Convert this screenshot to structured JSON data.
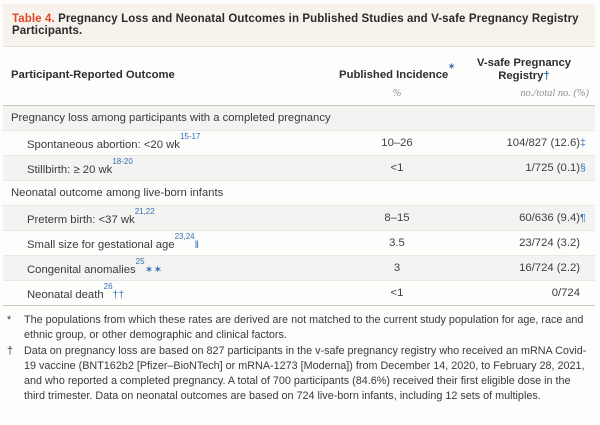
{
  "colors": {
    "accent_red": "#e0492a",
    "reference_blue": "#3570b4",
    "title_bar_bg": "#f7f3ec",
    "shaded_row_bg": "#f3f3f1"
  },
  "title": {
    "label": "Table 4.",
    "text": "Pregnancy Loss and Neonatal Outcomes in Published Studies and V-safe Pregnancy Registry Participants."
  },
  "header": {
    "col1": "Participant-Reported Outcome",
    "col2": "Published Incidence",
    "col2_marker": "✶",
    "col3_line1": "V-safe Pregnancy",
    "col3_line2": "Registry",
    "col3_marker": "†",
    "sub2": "%",
    "sub3": "no./total no. (%)"
  },
  "rows": [
    {
      "type": "category",
      "label": "Pregnancy loss among participants with a completed pregnancy"
    },
    {
      "type": "item",
      "label": "Spontaneous abortion: <20 wk",
      "ref": "15-17",
      "suffix": "",
      "incidence": "10–26",
      "registry": "104/827 (12.6)",
      "symbol": "‡"
    },
    {
      "type": "item",
      "label": "Stillbirth: ≥ 20 wk",
      "ref": "18-20",
      "suffix": "",
      "incidence": "<1",
      "registry": "1/725 (0.1)",
      "symbol": "§"
    },
    {
      "type": "category",
      "label": "Neonatal outcome among live-born infants"
    },
    {
      "type": "item",
      "label": "Preterm birth: <37 wk",
      "ref": "21,22",
      "suffix": "",
      "incidence": "8–15",
      "registry": "60/636 (9.4)",
      "symbol": "¶"
    },
    {
      "type": "item",
      "label": "Small size for gestational age",
      "ref": "23,24",
      "suffix": "‖",
      "incidence": "3.5",
      "registry": "23/724 (3.2)",
      "symbol": ""
    },
    {
      "type": "item",
      "label": "Congenital anomalies",
      "ref": "25",
      "suffix": "✶✶",
      "incidence": "3",
      "registry": "16/724 (2.2)",
      "symbol": ""
    },
    {
      "type": "item",
      "label": "Neonatal death",
      "ref": "26",
      "suffix": "††",
      "incidence": "<1",
      "registry": "0/724",
      "symbol": ""
    }
  ],
  "footnotes": [
    {
      "marker": "*",
      "text": "The populations from which these rates are derived are not matched to the current study population for age, race and ethnic group, or other demographic and clinical factors."
    },
    {
      "marker": "†",
      "text": "Data on pregnancy loss are based on 827 participants in the v-safe pregnancy registry who received an mRNA Covid-19 vaccine (BNT162b2 [Pfizer–BioNTech] or mRNA-1273 [Moderna]) from December 14, 2020, to February 28, 2021, and who reported a completed pregnancy. A total of 700 participants (84.6%) received their first eligible dose in the third trimester. Data on neonatal outcomes are based on 724 live-born infants, including 12 sets of multiples."
    }
  ]
}
